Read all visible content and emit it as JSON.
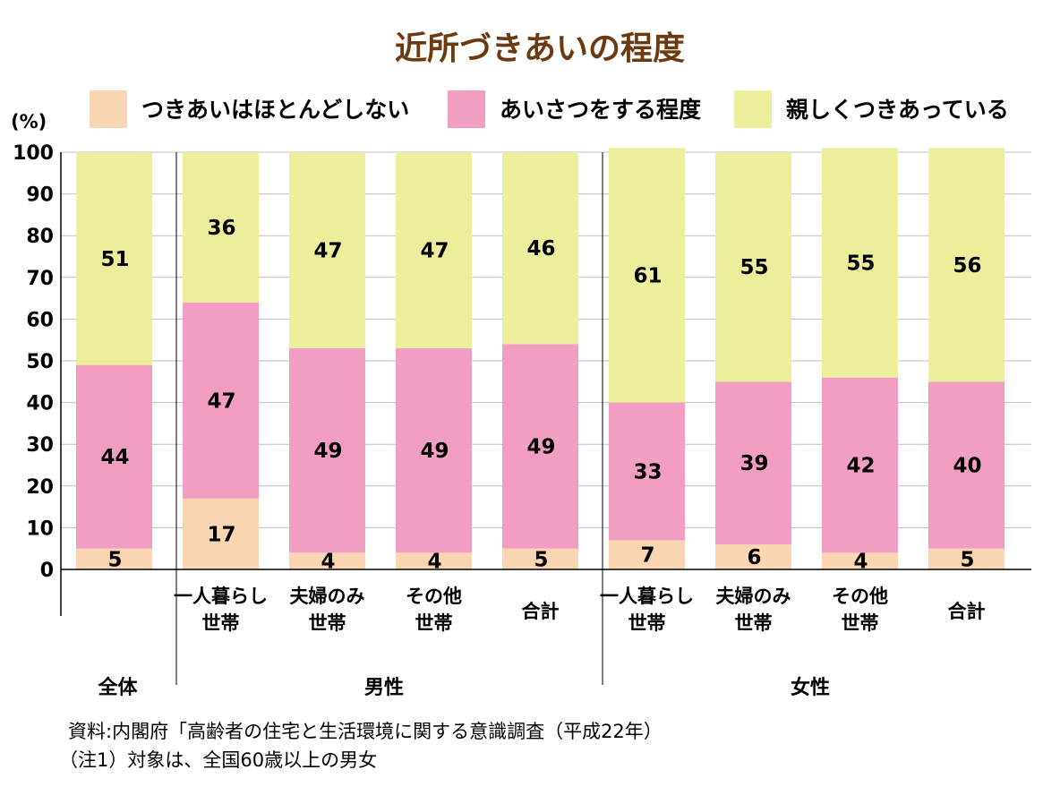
{
  "chart_data": {
    "type": "bar",
    "stacked": true,
    "title": "近所づきあいの程度",
    "unit_label": "(%)",
    "ylim": [
      0,
      100
    ],
    "y_ticks": [
      0,
      10,
      20,
      30,
      40,
      50,
      60,
      70,
      80,
      90,
      100
    ],
    "legend_position": "top",
    "categories": [
      [
        "全体",
        ""
      ],
      [
        "一人暮らし",
        "世帯"
      ],
      [
        "夫婦のみ",
        "世帯"
      ],
      [
        "その他",
        "世帯"
      ],
      [
        "合計",
        ""
      ],
      [
        "一人暮らし",
        "世帯"
      ],
      [
        "夫婦のみ",
        "世帯"
      ],
      [
        "その他",
        "世帯"
      ],
      [
        "合計",
        ""
      ]
    ],
    "groups": [
      {
        "label": "全体",
        "count": 1
      },
      {
        "label": "男性",
        "count": 4
      },
      {
        "label": "女性",
        "count": 4
      }
    ],
    "series": [
      {
        "name": "つきあいはほとんどしない",
        "color": "#FAD5B1",
        "values": [
          5,
          17,
          4,
          4,
          5,
          7,
          6,
          4,
          5
        ]
      },
      {
        "name": "あいさつをする程度",
        "color": "#F19EC2",
        "values": [
          44,
          47,
          49,
          49,
          49,
          33,
          39,
          42,
          40
        ]
      },
      {
        "name": "親しくつきあっている",
        "color": "#EDEE9B",
        "values": [
          51,
          36,
          47,
          47,
          46,
          61,
          55,
          55,
          56
        ]
      }
    ]
  },
  "colors": {
    "title": "#6B3A10",
    "grid": "#BFBFBF",
    "axis": "#000000"
  },
  "notes": [
    "資料:内閣府「高齢者の住宅と生活環境に関する意識調査（平成22年）",
    "（注1）対象は、全国60歳以上の男女"
  ]
}
